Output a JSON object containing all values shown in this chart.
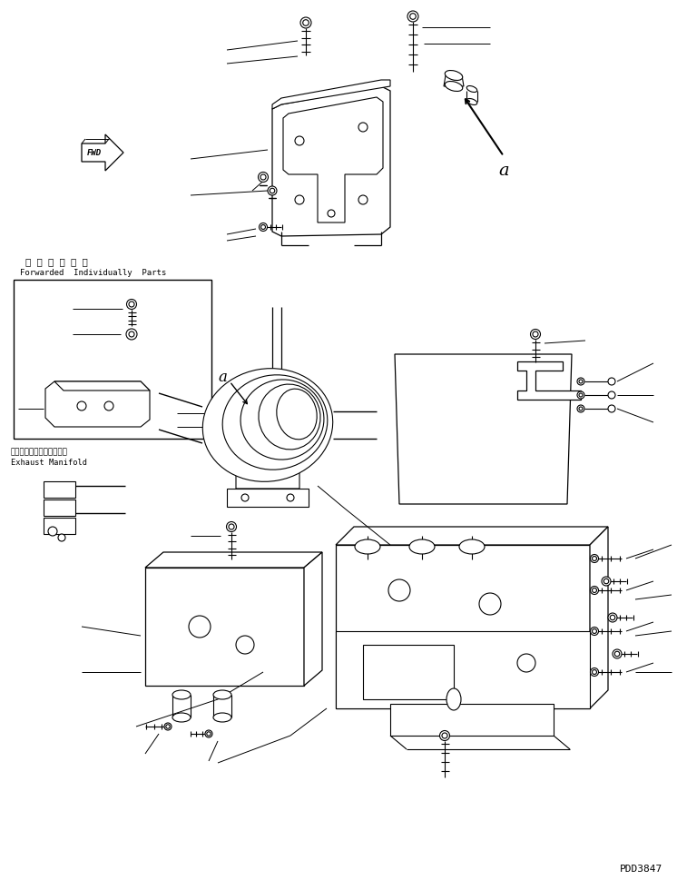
{
  "bg_color": "#ffffff",
  "line_color": "#000000",
  "title_code": "PDD3847",
  "fwd_text": "FWD",
  "label_japanese": "単 品 発 送 部 品",
  "label_english": "Forwarded  Individually  Parts",
  "exhaust_japanese": "エキゾーストマニホールド",
  "exhaust_english": "Exhaust Manifold",
  "label_a": "a",
  "figsize": [
    7.46,
    9.8
  ],
  "dpi": 100
}
